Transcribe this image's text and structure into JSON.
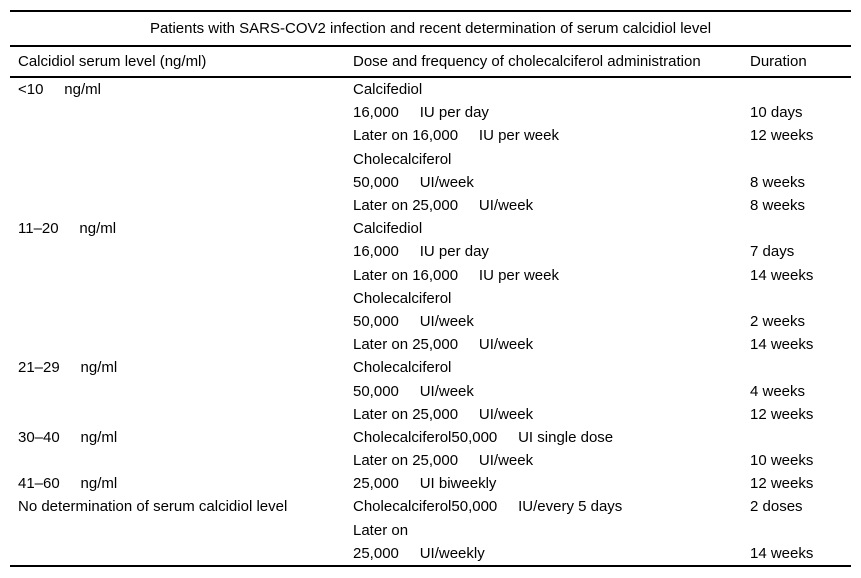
{
  "table": {
    "title": "Patients with SARS-COV2 infection and recent determination of serum calcidiol level",
    "columns": [
      "Calcidiol serum level (ng/ml)",
      "Dose and frequency of cholecalciferol administration",
      "Duration"
    ],
    "rows": [
      {
        "level": "<10     ng/ml",
        "dose": "Calcifediol",
        "duration": ""
      },
      {
        "level": "",
        "dose": "16,000     IU per day",
        "duration": "10 days"
      },
      {
        "level": "",
        "dose": "Later on 16,000     IU per week",
        "duration": "12 weeks"
      },
      {
        "level": "",
        "dose": "Cholecalciferol",
        "duration": ""
      },
      {
        "level": "",
        "dose": "50,000     UI/week",
        "duration": "8 weeks"
      },
      {
        "level": "",
        "dose": "Later on 25,000     UI/week",
        "duration": "8 weeks"
      },
      {
        "level": "11–20     ng/ml",
        "dose": "Calcifediol",
        "duration": ""
      },
      {
        "level": "",
        "dose": "16,000     IU per day",
        "duration": "7 days"
      },
      {
        "level": "",
        "dose": "Later on 16,000     IU per week",
        "duration": "14 weeks"
      },
      {
        "level": "",
        "dose": "Cholecalciferol",
        "duration": ""
      },
      {
        "level": "",
        "dose": "50,000     UI/week",
        "duration": "2 weeks"
      },
      {
        "level": "",
        "dose": "Later on 25,000     UI/week",
        "duration": "14 weeks"
      },
      {
        "level": "21–29     ng/ml",
        "dose": "Cholecalciferol",
        "duration": ""
      },
      {
        "level": "",
        "dose": "50,000     UI/week",
        "duration": "4 weeks"
      },
      {
        "level": "",
        "dose": "Later on 25,000     UI/week",
        "duration": "12 weeks"
      },
      {
        "level": "30–40     ng/ml",
        "dose": "Cholecalciferol50,000     UI single dose",
        "duration": ""
      },
      {
        "level": "",
        "dose": "Later on 25,000     UI/week",
        "duration": "10 weeks"
      },
      {
        "level": "41–60     ng/ml",
        "dose": "25,000     UI biweekly",
        "duration": "12 weeks"
      },
      {
        "level": "No determination of serum calcidiol level",
        "dose": "Cholecalciferol50,000     IU/every 5 days",
        "duration": "2 doses"
      },
      {
        "level": "",
        "dose": "Later on",
        "duration": ""
      },
      {
        "level": "",
        "dose": "25,000     UI/weekly",
        "duration": "14 weeks"
      }
    ]
  }
}
